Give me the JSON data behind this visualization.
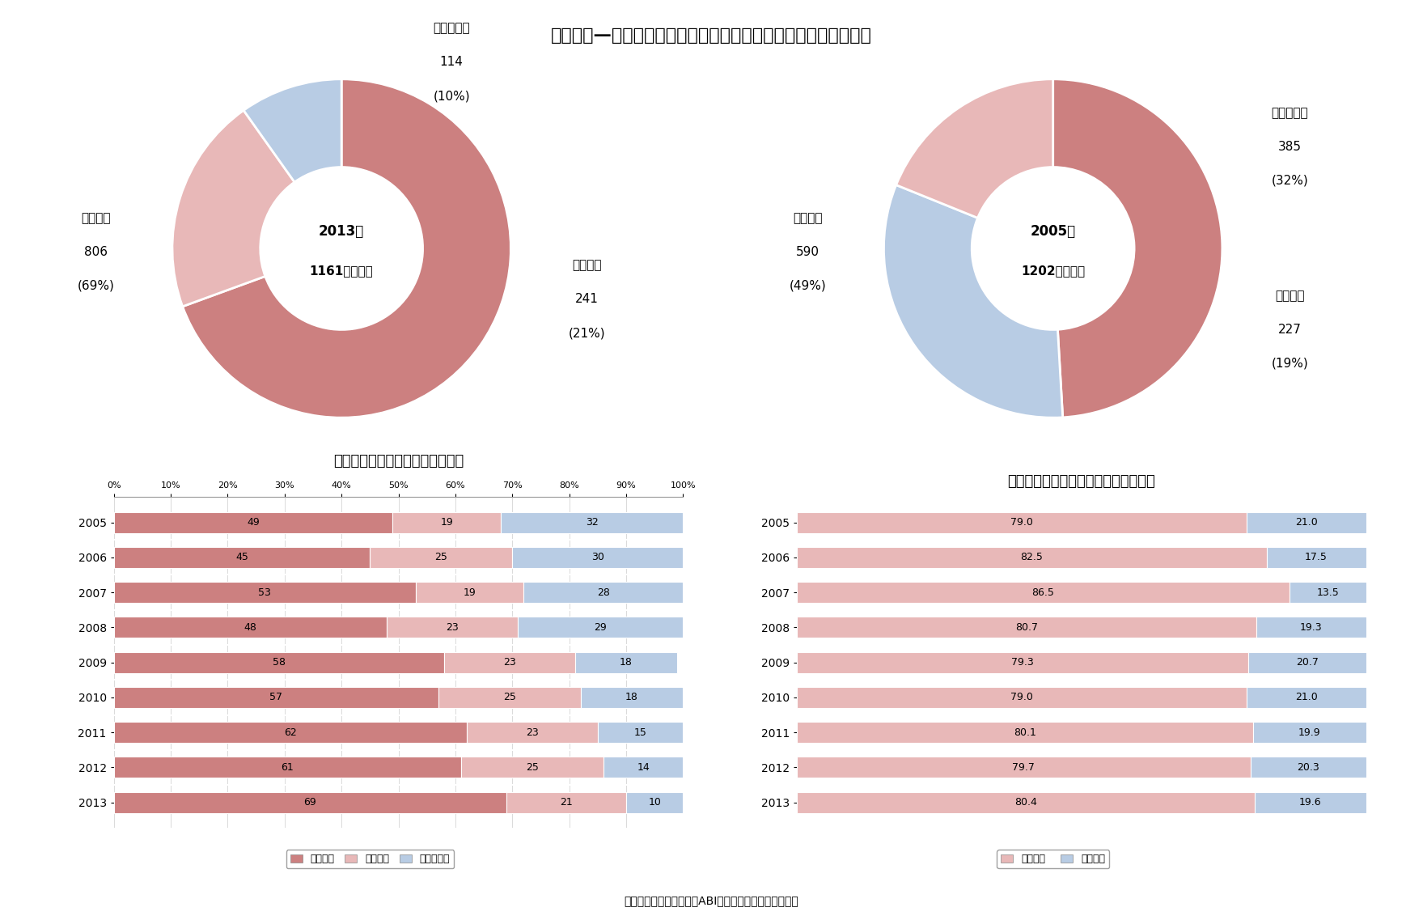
{
  "title": "グラフ１—英国における生保会社収入保険料の事業分選別等状況",
  "pie2013": {
    "year": "2013年",
    "center_label": "1161億ポンド",
    "values": [
      806,
      241,
      114
    ],
    "labels": [
      "企業年金",
      "個人年金",
      "生命保険等"
    ],
    "pcts": [
      "69%",
      "21%",
      "10%"
    ],
    "amounts": [
      "806",
      "241",
      "114"
    ],
    "colors": [
      "#cc8080",
      "#e8b8b8",
      "#b8cce4"
    ]
  },
  "pie2005": {
    "year": "2005年",
    "center_label": "1202億ポンド",
    "values": [
      590,
      385,
      227
    ],
    "labels": [
      "企業年金",
      "生命保険等",
      "個人年金"
    ],
    "pcts": [
      "49%",
      "32%",
      "19%"
    ],
    "amounts": [
      "590",
      "385",
      "227"
    ],
    "colors": [
      "#cc8080",
      "#b8cce4",
      "#e8b8b8"
    ]
  },
  "bar_left_title": "【年金対生命保険構成比の推移】",
  "bar_right_title": "【一時払い対平準払い構成比の推移】",
  "years": [
    2005,
    2006,
    2007,
    2008,
    2009,
    2010,
    2011,
    2012,
    2013
  ],
  "left_bars": {
    "kigyou": [
      49,
      45,
      53,
      48,
      58,
      57,
      62,
      61,
      69
    ],
    "kojin": [
      19,
      25,
      19,
      23,
      23,
      25,
      23,
      25,
      21
    ],
    "seimei": [
      32,
      30,
      28,
      29,
      18,
      18,
      15,
      14,
      10
    ],
    "colors": [
      "#cc8080",
      "#e8b8b8",
      "#b8cce4"
    ]
  },
  "right_bars": {
    "ichiji": [
      79.0,
      82.5,
      86.5,
      80.7,
      79.3,
      79.0,
      80.1,
      79.7,
      80.4
    ],
    "heijun": [
      21.0,
      17.5,
      13.5,
      19.3,
      20.7,
      21.0,
      19.9,
      20.3,
      19.6
    ],
    "colors": [
      "#e8b8b8",
      "#b8cce4"
    ]
  },
  "legend_left": [
    "企業年金",
    "個人年金",
    "生命保険等"
  ],
  "legend_right": [
    "一時払い",
    "平準払い"
  ],
  "footer": "（資料）英国保険協会（ABI）のホームページ情報より",
  "bg_color": "#ffffff",
  "text_color": "#000000"
}
